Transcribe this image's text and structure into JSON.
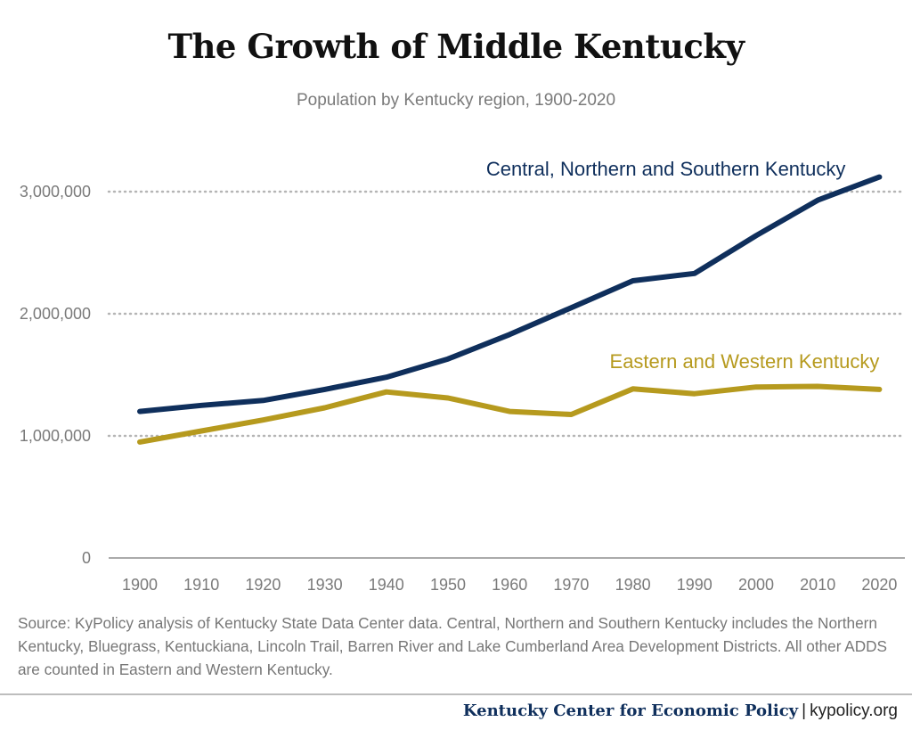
{
  "header": {
    "title": "The Growth of Middle Kentucky",
    "subtitle": "Population by Kentucky region, 1900-2020"
  },
  "chart_data": {
    "type": "line",
    "x": [
      1900,
      1910,
      1920,
      1930,
      1940,
      1950,
      1960,
      1970,
      1980,
      1990,
      2000,
      2010,
      2020
    ],
    "tick_labels": [
      "1900",
      "1910",
      "1920",
      "1930",
      "1940",
      "1950",
      "1960",
      "1970",
      "1980",
      "1990",
      "2000",
      "2010",
      "2020"
    ],
    "y_ticks": [
      0,
      1000000,
      2000000,
      3000000
    ],
    "y_tick_labels": [
      "0",
      "1,000,000",
      "2,000,000",
      "3,000,000"
    ],
    "ylim": [
      0,
      3300000
    ],
    "grid": "horizontal dotted",
    "series": [
      {
        "name": "Central, Northern and Southern Kentucky",
        "color": "#0f2f5c",
        "values": [
          1200000,
          1250000,
          1290000,
          1380000,
          1480000,
          1630000,
          1830000,
          2050000,
          2270000,
          2330000,
          2640000,
          2930000,
          3120000
        ]
      },
      {
        "name": "Eastern and Western Kentucky",
        "color": "#b69a1e",
        "values": [
          950000,
          1040000,
          1130000,
          1230000,
          1360000,
          1310000,
          1200000,
          1175000,
          1385000,
          1345000,
          1400000,
          1405000,
          1380000
        ]
      }
    ]
  },
  "source_note": "Source: KyPolicy analysis of Kentucky State Data Center data. Central, Northern and Southern Kentucky includes the Northern Kentucky, Bluegrass, Kentuckiana, Lincoln Trail, Barren River and Lake Cumberland Area Development Districts. All other ADDS are counted in Eastern and Western Kentucky.",
  "footer": {
    "org": "Kentucky Center for Economic Policy",
    "separator": "|",
    "site": "kypolicy.org"
  }
}
